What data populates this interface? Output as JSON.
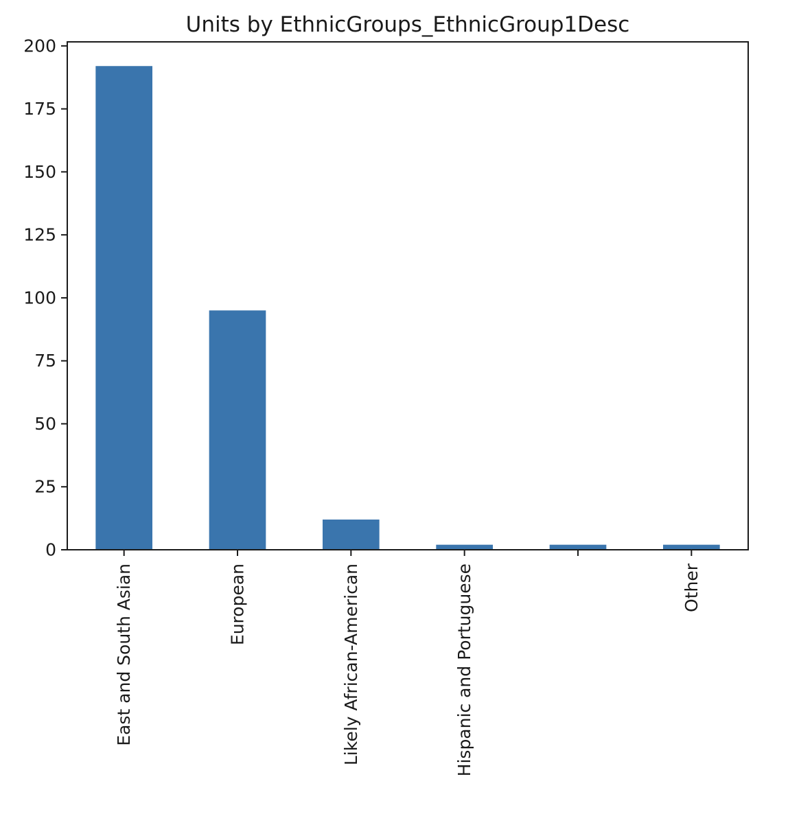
{
  "chart_data": {
    "type": "bar",
    "title": "Units by EthnicGroups_EthnicGroup1Desc",
    "xlabel": "",
    "ylabel": "",
    "categories": [
      "East and South Asian",
      "European",
      "Likely African-American",
      "Hispanic and Portuguese",
      "",
      "Other"
    ],
    "values": [
      192,
      95,
      12,
      2,
      2,
      2
    ],
    "ylim": [
      0,
      201.6
    ],
    "yticks": [
      0,
      25,
      50,
      75,
      100,
      125,
      150,
      175,
      200
    ],
    "ytick_labels": [
      "0",
      "25",
      "50",
      "75",
      "100",
      "125",
      "150",
      "175",
      "200"
    ],
    "grid": false,
    "legend": "none",
    "bar_color": "#3a75ad"
  }
}
